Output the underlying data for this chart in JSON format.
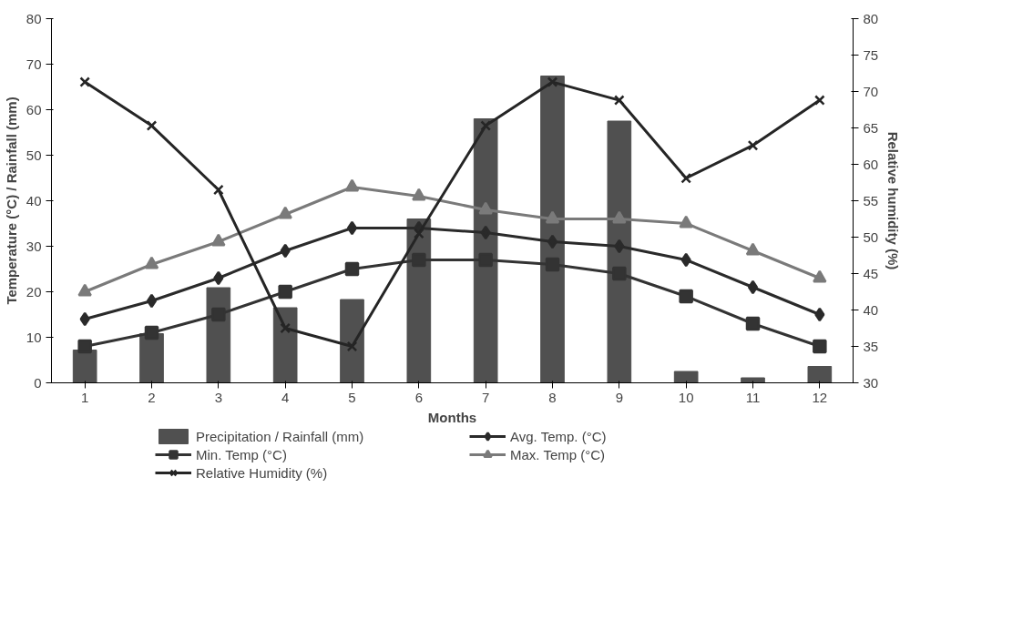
{
  "chart_data": {
    "type": "bar",
    "xlabel": "Months",
    "ylabel": "Temperature (°C) / Rainfall (mm)",
    "y2label": "Relative humidity (%)",
    "x": [
      1,
      2,
      3,
      4,
      5,
      6,
      7,
      8,
      9,
      10,
      11,
      12
    ],
    "xlim": [
      0.5,
      12.5
    ],
    "xticks": [
      1,
      2,
      3,
      4,
      5,
      6,
      7,
      8,
      9,
      10,
      11,
      12
    ],
    "ylim": [
      0,
      80
    ],
    "yticks": [
      0,
      10,
      20,
      30,
      40,
      50,
      60,
      70,
      80
    ],
    "y2lim": [
      30,
      80
    ],
    "y2ticks": [
      30,
      35,
      40,
      45,
      50,
      55,
      60,
      65,
      70,
      75,
      80
    ],
    "grid": false,
    "legend": "bottom",
    "series": [
      {
        "name": "Precipitation / Rainfall (mm)",
        "color": "#505050",
        "values": [
          7.2,
          10.8,
          20.9,
          16.5,
          18.3,
          36,
          58,
          67.4,
          57.5,
          2.5,
          1.1,
          3.6
        ]
      },
      {
        "name": "Avg. Temp. (°C)",
        "type": "line",
        "marker": "diamond",
        "color": "#2a2a2a",
        "values": [
          14,
          18,
          23,
          29,
          34,
          34,
          33,
          31,
          30,
          27,
          21,
          15
        ]
      },
      {
        "name": "Min. Temp (°C)",
        "type": "line",
        "marker": "square",
        "color": "#333333",
        "values": [
          8,
          11,
          15,
          20,
          25,
          27,
          27,
          26,
          24,
          19,
          13,
          8
        ]
      },
      {
        "name": "Max. Temp (°C)",
        "type": "line",
        "marker": "triangle",
        "color": "#7a7a7a",
        "values": [
          20,
          26,
          31,
          37,
          43,
          41,
          38,
          36,
          36,
          35,
          29,
          23
        ]
      },
      {
        "name": "Relative Humidity (%)",
        "type": "line",
        "marker": "cross",
        "axis": "y2",
        "color": "#252525",
        "values": [
          71.3,
          65.3,
          56.5,
          37.5,
          35,
          50.5,
          65.3,
          71.3,
          68.8,
          58.1,
          62.6,
          68.8
        ]
      }
    ]
  }
}
